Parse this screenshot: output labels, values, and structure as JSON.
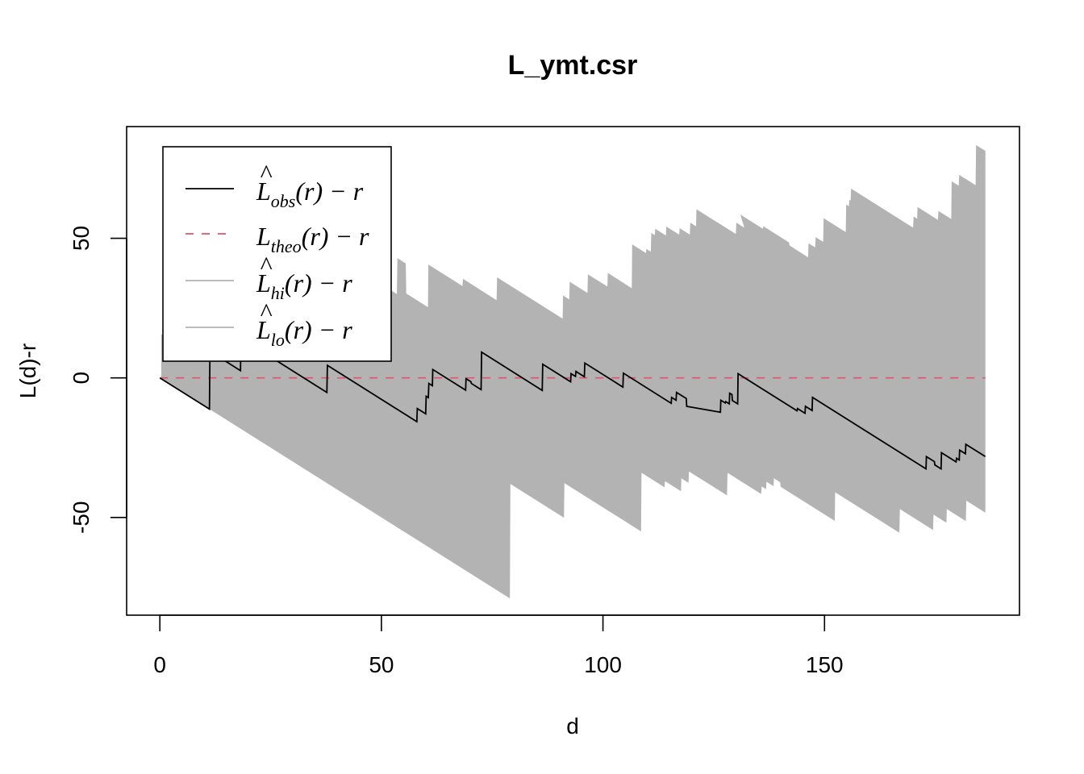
{
  "chart_data": {
    "type": "line",
    "title": "L_ymt.csr",
    "xlabel": "d",
    "ylabel": "L(d)-r",
    "xlim": [
      -7.5,
      194
    ],
    "ylim": [
      -85,
      90
    ],
    "xticks": [
      0,
      50,
      100,
      150
    ],
    "yticks": [
      -50,
      0,
      50
    ],
    "grid": false,
    "legend_position": "top-left",
    "legend": [
      {
        "base": "L",
        "hat": true,
        "sub": "obs",
        "rest": "(r) − r",
        "style": "solid",
        "color": "#000000"
      },
      {
        "base": "L",
        "hat": false,
        "sub": "theo",
        "rest": "(r) − r",
        "style": "dashed",
        "color": "#DF536B"
      },
      {
        "base": "L",
        "hat": true,
        "sub": "hi",
        "rest": "(r) − r",
        "style": "solid",
        "color": "#B3B3B3"
      },
      {
        "base": "L",
        "hat": true,
        "sub": "lo",
        "rest": "(r) − r",
        "style": "solid",
        "color": "#B3B3B3"
      }
    ],
    "series": [
      {
        "name": "obs",
        "color": "#000000",
        "style": "solid",
        "x": [
          0,
          11.2,
          11.3,
          18.2,
          18.3,
          37.7,
          37.8,
          58.0,
          58.1,
          60.0,
          60.1,
          60.6,
          60.7,
          61.5,
          61.6,
          69.0,
          69.1,
          70.2,
          70.3,
          72.5,
          72.6,
          86.3,
          86.4,
          92.7,
          92.8,
          93.8,
          93.9,
          95.8,
          95.9,
          104.5,
          104.6,
          115.4,
          115.5,
          116.5,
          116.6,
          118.8,
          118.9,
          126.5,
          126.6,
          127.6,
          127.7,
          128.5,
          128.6,
          129.1,
          129.2,
          130.4,
          130.5,
          143.8,
          143.9,
          145.6,
          145.7,
          147.2,
          147.3,
          172.9,
          173.0,
          174.8,
          174.9,
          176.3,
          176.4,
          179.7,
          179.8,
          180.4,
          180.5,
          181.8,
          181.9,
          186.3
        ],
        "y": [
          0,
          -11.2,
          9.5,
          2.6,
          14.2,
          -5.2,
          4.5,
          -15.7,
          -11.0,
          -12.9,
          -6.6,
          -7.1,
          -2.0,
          -2.8,
          3.0,
          -4.4,
          -0.3,
          -1.4,
          -2.0,
          -4.2,
          9.2,
          -4.5,
          4.9,
          -1.4,
          1.5,
          0.5,
          2.3,
          0.4,
          5.3,
          -3.3,
          1.7,
          -9.1,
          -7.0,
          -8.0,
          -5.2,
          -7.4,
          -10.2,
          -12.3,
          -8.0,
          -9.0,
          -8.5,
          -9.3,
          -5.5,
          -6.0,
          -8.1,
          -9.3,
          1.5,
          -11.8,
          -11.0,
          -12.7,
          -10.2,
          -11.7,
          -7.0,
          -32.6,
          -28.2,
          -30.0,
          -31.2,
          -32.6,
          -26.8,
          -30.1,
          -28.8,
          -29.4,
          -25.9,
          -27.2,
          -23.8,
          -28.2
        ]
      },
      {
        "name": "theo",
        "color": "#DF536B",
        "style": "dashed",
        "x": [
          0,
          186.3
        ],
        "y": [
          0,
          0
        ]
      },
      {
        "name": "hi",
        "color": "#B3B3B3",
        "style": "solid",
        "x": [
          0.3,
          1.2,
          1.3,
          2.8,
          2.9,
          5.5,
          5.6,
          14.2,
          14.3,
          16.6,
          16.7,
          18.8,
          18.9,
          21.6,
          21.7,
          23.6,
          23.7,
          34.6,
          34.7,
          37.6,
          37.7,
          43.6,
          43.7,
          45.5,
          45.6,
          49.6,
          49.7,
          53.5,
          53.6,
          55.5,
          55.6,
          60.5,
          60.6,
          68.3,
          68.4,
          76.0,
          76.1,
          90.9,
          91.0,
          92.4,
          92.5,
          96.5,
          96.6,
          101.0,
          101.1,
          106.5,
          106.6,
          109.7,
          109.8,
          110.8,
          110.9,
          111.7,
          111.8,
          114.2,
          114.3,
          117.2,
          117.3,
          119.6,
          119.7,
          121.0,
          121.1,
          130.0,
          130.1,
          131.9,
          131.0,
          136.1,
          136.2,
          142.0,
          142.1,
          146.3,
          146.4,
          147.9,
          148.0,
          149.7,
          149.8,
          154.8,
          154.9,
          155.5,
          155.6,
          155.9,
          156.0,
          170.0,
          170.1,
          170.9,
          171.0,
          175.6,
          175.7,
          178.6,
          178.7,
          180.3,
          180.4,
          184.1,
          184.2,
          186.3
        ],
        "y": [
          15.7,
          14.8,
          16.5,
          15.0,
          22.5,
          19.9,
          20.9,
          12.3,
          24.3,
          22.0,
          20.1,
          18.0,
          28.8,
          26.1,
          29.4,
          27.5,
          16.6,
          13.7,
          19.9,
          14.0,
          37.3,
          31.4,
          35.5,
          33.7,
          36.4,
          32.4,
          33.8,
          30.0,
          42.9,
          41.0,
          30.2,
          25.3,
          40.6,
          32.9,
          35.5,
          27.8,
          36.0,
          21.2,
          29.5,
          28.1,
          34.4,
          30.4,
          37.1,
          32.7,
          37.6,
          32.1,
          47.8,
          44.7,
          46.2,
          45.2,
          51.9,
          51.1,
          53.4,
          51.0,
          54.2,
          51.3,
          53.6,
          51.3,
          55.6,
          54.3,
          60.4,
          51.5,
          55.6,
          53.8,
          58.5,
          53.4,
          54.3,
          48.5,
          47.4,
          43.2,
          48.2,
          46.7,
          50.4,
          48.7,
          57.2,
          52.2,
          62.1,
          61.5,
          63.8,
          63.5,
          67.8,
          53.8,
          57.8,
          57.0,
          61.2,
          56.6,
          59.8,
          56.9,
          70.4,
          68.8,
          72.7,
          69.0,
          83.4,
          81.3
        ]
      },
      {
        "name": "lo",
        "color": "#B3B3B3",
        "style": "solid",
        "x": [
          0.3,
          79.0,
          79.1,
          91.2,
          91.3,
          108.6,
          108.7,
          113.9,
          114.0,
          117.6,
          117.7,
          119.3,
          119.4,
          128.0,
          128.1,
          135.7,
          135.8,
          136.8,
          136.9,
          138.5,
          138.6,
          140.0,
          140.1,
          152.3,
          152.4,
          166.9,
          167.0,
          174.5,
          174.6,
          177.5,
          177.6,
          181.9,
          182.0,
          186.3
        ],
        "y": [
          -0.3,
          -79.0,
          -38.0,
          -50.1,
          -37.7,
          -55.0,
          -34.0,
          -39.2,
          -37.0,
          -40.6,
          -36.0,
          -37.6,
          -33.5,
          -42.1,
          -34.0,
          -41.6,
          -38.9,
          -39.9,
          -37.2,
          -38.8,
          -36.0,
          -37.4,
          -39.0,
          -51.2,
          -41.0,
          -55.5,
          -47.0,
          -54.5,
          -49.0,
          -51.9,
          -47.0,
          -51.3,
          -44.0,
          -48.3
        ]
      }
    ]
  }
}
